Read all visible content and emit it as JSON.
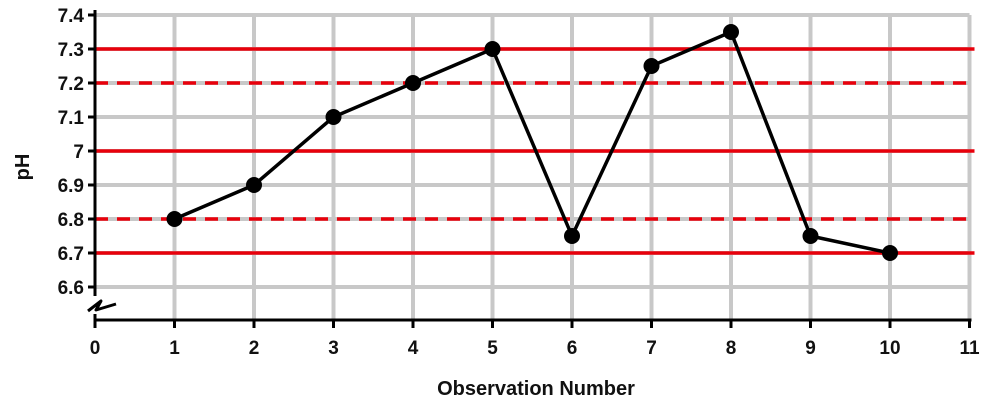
{
  "chart_data": {
    "type": "line",
    "title": "",
    "xlabel": "Observation Number",
    "ylabel": "pH",
    "xlim": [
      0,
      11
    ],
    "ylim": [
      6.53,
      7.4
    ],
    "x_ticks": [
      "0",
      "1",
      "2",
      "3",
      "4",
      "5",
      "6",
      "7",
      "8",
      "9",
      "10",
      "11"
    ],
    "y_ticks": [
      "6.6",
      "6.7",
      "6.8",
      "6.9",
      "7",
      "7.1",
      "7.2",
      "7.3",
      "7.4"
    ],
    "grid": true,
    "axis_break": true,
    "series": [
      {
        "x": [
          1,
          2,
          3,
          4,
          5,
          6,
          7,
          8,
          9,
          10
        ],
        "y": [
          6.8,
          6.9,
          7.1,
          7.2,
          7.3,
          6.75,
          7.25,
          7.35,
          6.75,
          6.7
        ],
        "color": "#000000"
      }
    ],
    "reference_lines": [
      {
        "y": 7.3,
        "style": "solid",
        "color": "#e8000b"
      },
      {
        "y": 7.2,
        "style": "dashed",
        "color": "#e8000b"
      },
      {
        "y": 7.0,
        "style": "solid",
        "color": "#e8000b"
      },
      {
        "y": 6.8,
        "style": "dashed",
        "color": "#e8000b"
      },
      {
        "y": 6.7,
        "style": "solid",
        "color": "#e8000b"
      }
    ],
    "colors": {
      "grid": "#c8c8c8",
      "axis": "#000000",
      "reference": "#e8000b"
    }
  }
}
